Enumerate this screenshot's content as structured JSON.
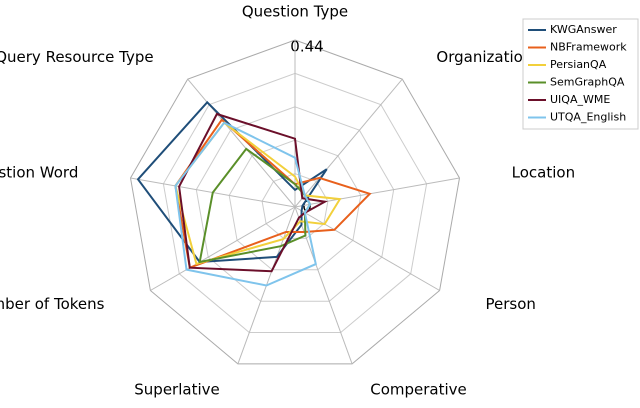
{
  "chart_data": {
    "type": "radar",
    "categories": [
      "Question Type",
      "Organization",
      "Location",
      "Person",
      "Comperative",
      "Superlative",
      "Number of Tokens",
      "Question Word",
      "Query Resource Type"
    ],
    "ylim": [
      0,
      0.44
    ],
    "yticks": [
      0,
      0.44
    ],
    "grid": true,
    "legend": "upper right",
    "series": [
      {
        "name": "KWGAnswer",
        "color": "#1f4e79",
        "values": [
          0.045,
          0.13,
          0.02,
          0.02,
          0.05,
          0.14,
          0.29,
          0.42,
          0.36
        ]
      },
      {
        "name": "NBFramework",
        "color": "#e8601c",
        "values": [
          0.06,
          0.1,
          0.2,
          0.12,
          0.07,
          0.07,
          0.32,
          0.32,
          0.3
        ]
      },
      {
        "name": "PersianQA",
        "color": "#f2d03b",
        "values": [
          0.08,
          0.04,
          0.12,
          0.09,
          0.04,
          0.09,
          0.3,
          0.32,
          0.29
        ]
      },
      {
        "name": "SemGraphQA",
        "color": "#5a8f29",
        "values": [
          0.06,
          0.04,
          0.04,
          0.03,
          0.08,
          0.11,
          0.29,
          0.22,
          0.2
        ]
      },
      {
        "name": "UIQA_WME",
        "color": "#6b0f2a",
        "values": [
          0.18,
          0.03,
          0.08,
          0.03,
          0.03,
          0.18,
          0.32,
          0.31,
          0.32
        ]
      },
      {
        "name": "UTQA_English",
        "color": "#7fc4ec",
        "values": [
          0.13,
          0.04,
          0.04,
          0.03,
          0.16,
          0.22,
          0.33,
          0.32,
          0.29
        ]
      }
    ]
  }
}
